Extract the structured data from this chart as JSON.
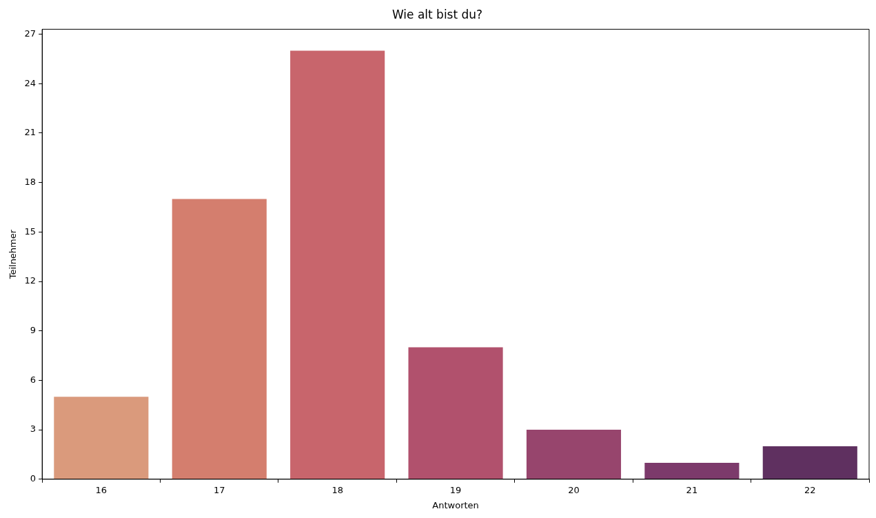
{
  "chart_data": {
    "type": "bar",
    "title": "Wie alt bist du?",
    "xlabel": "Antworten",
    "ylabel": "Teilnehmer",
    "categories": [
      "16",
      "17",
      "18",
      "19",
      "20",
      "21",
      "22"
    ],
    "values": [
      5,
      17,
      26,
      8,
      3,
      1,
      2
    ],
    "colors": [
      "#da9a7c",
      "#d47e6e",
      "#c8656c",
      "#b1516d",
      "#97456d",
      "#7c3a6b",
      "#5f3060"
    ],
    "ylim": [
      0,
      27.3
    ],
    "yticks": [
      0,
      3,
      6,
      9,
      12,
      15,
      18,
      21,
      24,
      27
    ],
    "grid": false,
    "legend": false
  }
}
